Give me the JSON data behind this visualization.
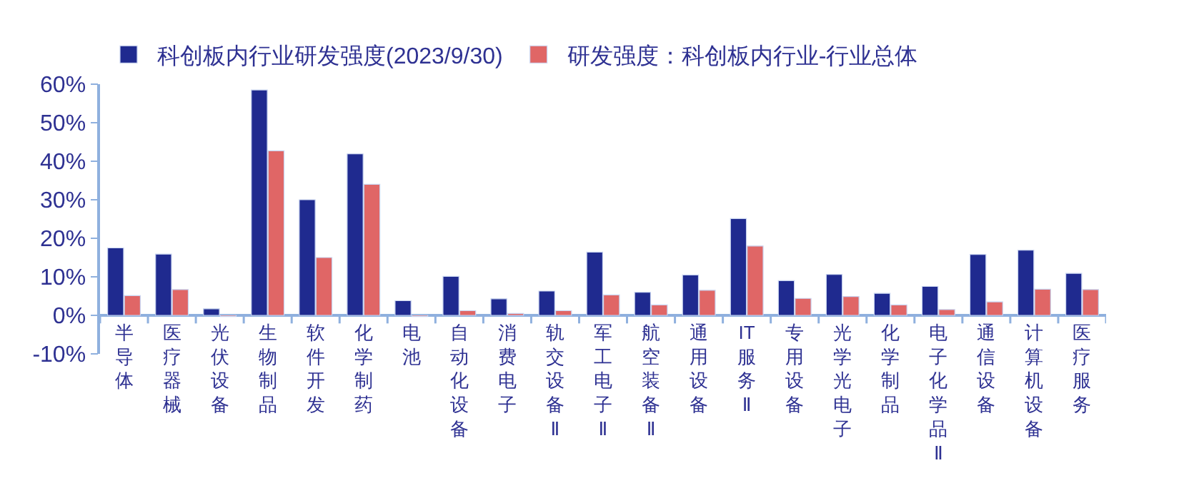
{
  "chart_data": {
    "type": "bar",
    "legend": "top",
    "grid": false,
    "categories": [
      "半导体",
      "医疗器械",
      "光伏设备",
      "生物制品",
      "软件开发",
      "化学制药",
      "电池",
      "自动化设备",
      "消费电子",
      "轨交设备Ⅱ",
      "军工电子Ⅱ",
      "航空装备Ⅱ",
      "通用设备",
      "IT服务Ⅱ",
      "专用设备",
      "光学光电子",
      "化学制品",
      "电子化学品Ⅱ",
      "通信设备",
      "计算机设备",
      "医疗服务"
    ],
    "series": [
      {
        "name": "科创板内行业研发强度(2023/9/30)",
        "color": "#1f2a8f",
        "values": [
          17.5,
          15.9,
          1.7,
          58.5,
          30.0,
          41.9,
          3.8,
          10.1,
          4.3,
          6.3,
          16.4,
          6.0,
          10.5,
          25.1,
          9.0,
          10.6,
          5.7,
          7.5,
          15.8,
          16.9,
          10.9
        ]
      },
      {
        "name": "研发强度：科创板内行业-行业总体",
        "color": "#e06666",
        "values": [
          5.1,
          6.7,
          -0.3,
          42.7,
          15.0,
          34.0,
          -0.3,
          1.2,
          0.5,
          1.2,
          5.3,
          2.7,
          6.5,
          18.0,
          4.4,
          4.9,
          2.7,
          1.5,
          3.5,
          6.8,
          6.7
        ]
      }
    ],
    "ylim": [
      -10,
      60
    ],
    "yticks": [
      {
        "value": 60,
        "label": "60%"
      },
      {
        "value": 50,
        "label": "50%"
      },
      {
        "value": 40,
        "label": "40%"
      },
      {
        "value": 30,
        "label": "30%"
      },
      {
        "value": 20,
        "label": "20%"
      },
      {
        "value": 10,
        "label": "10%"
      },
      {
        "value": 0,
        "label": "0%"
      },
      {
        "value": -10,
        "label": "-10%"
      }
    ]
  }
}
